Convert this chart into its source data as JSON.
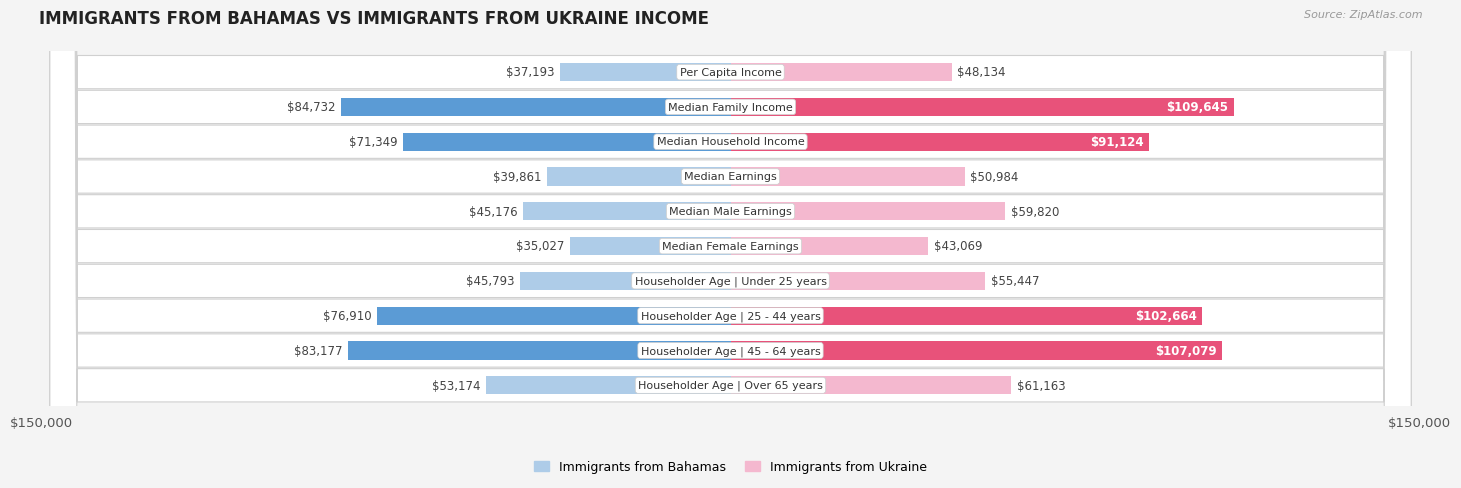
{
  "title": "IMMIGRANTS FROM BAHAMAS VS IMMIGRANTS FROM UKRAINE INCOME",
  "source": "Source: ZipAtlas.com",
  "categories": [
    "Per Capita Income",
    "Median Family Income",
    "Median Household Income",
    "Median Earnings",
    "Median Male Earnings",
    "Median Female Earnings",
    "Householder Age | Under 25 years",
    "Householder Age | 25 - 44 years",
    "Householder Age | 45 - 64 years",
    "Householder Age | Over 65 years"
  ],
  "bahamas_values": [
    37193,
    84732,
    71349,
    39861,
    45176,
    35027,
    45793,
    76910,
    83177,
    53174
  ],
  "ukraine_values": [
    48134,
    109645,
    91124,
    50984,
    59820,
    43069,
    55447,
    102664,
    107079,
    61163
  ],
  "bahamas_color_light": "#aecce8",
  "bahamas_color_dark": "#5b9bd5",
  "ukraine_color_light": "#f4b8cf",
  "ukraine_color_dark": "#e8527a",
  "max_value": 150000,
  "bar_height": 0.52,
  "background_color": "#f4f4f4",
  "row_bg_color": "#ffffff",
  "row_border_color": "#d0d0d0",
  "legend_bahamas": "Immigrants from Bahamas",
  "legend_ukraine": "Immigrants from Ukraine",
  "x_tick_label": "$150,000",
  "label_threshold": 90000,
  "value_fontsize": 8.5,
  "cat_fontsize": 8.0,
  "title_fontsize": 12,
  "source_fontsize": 8
}
